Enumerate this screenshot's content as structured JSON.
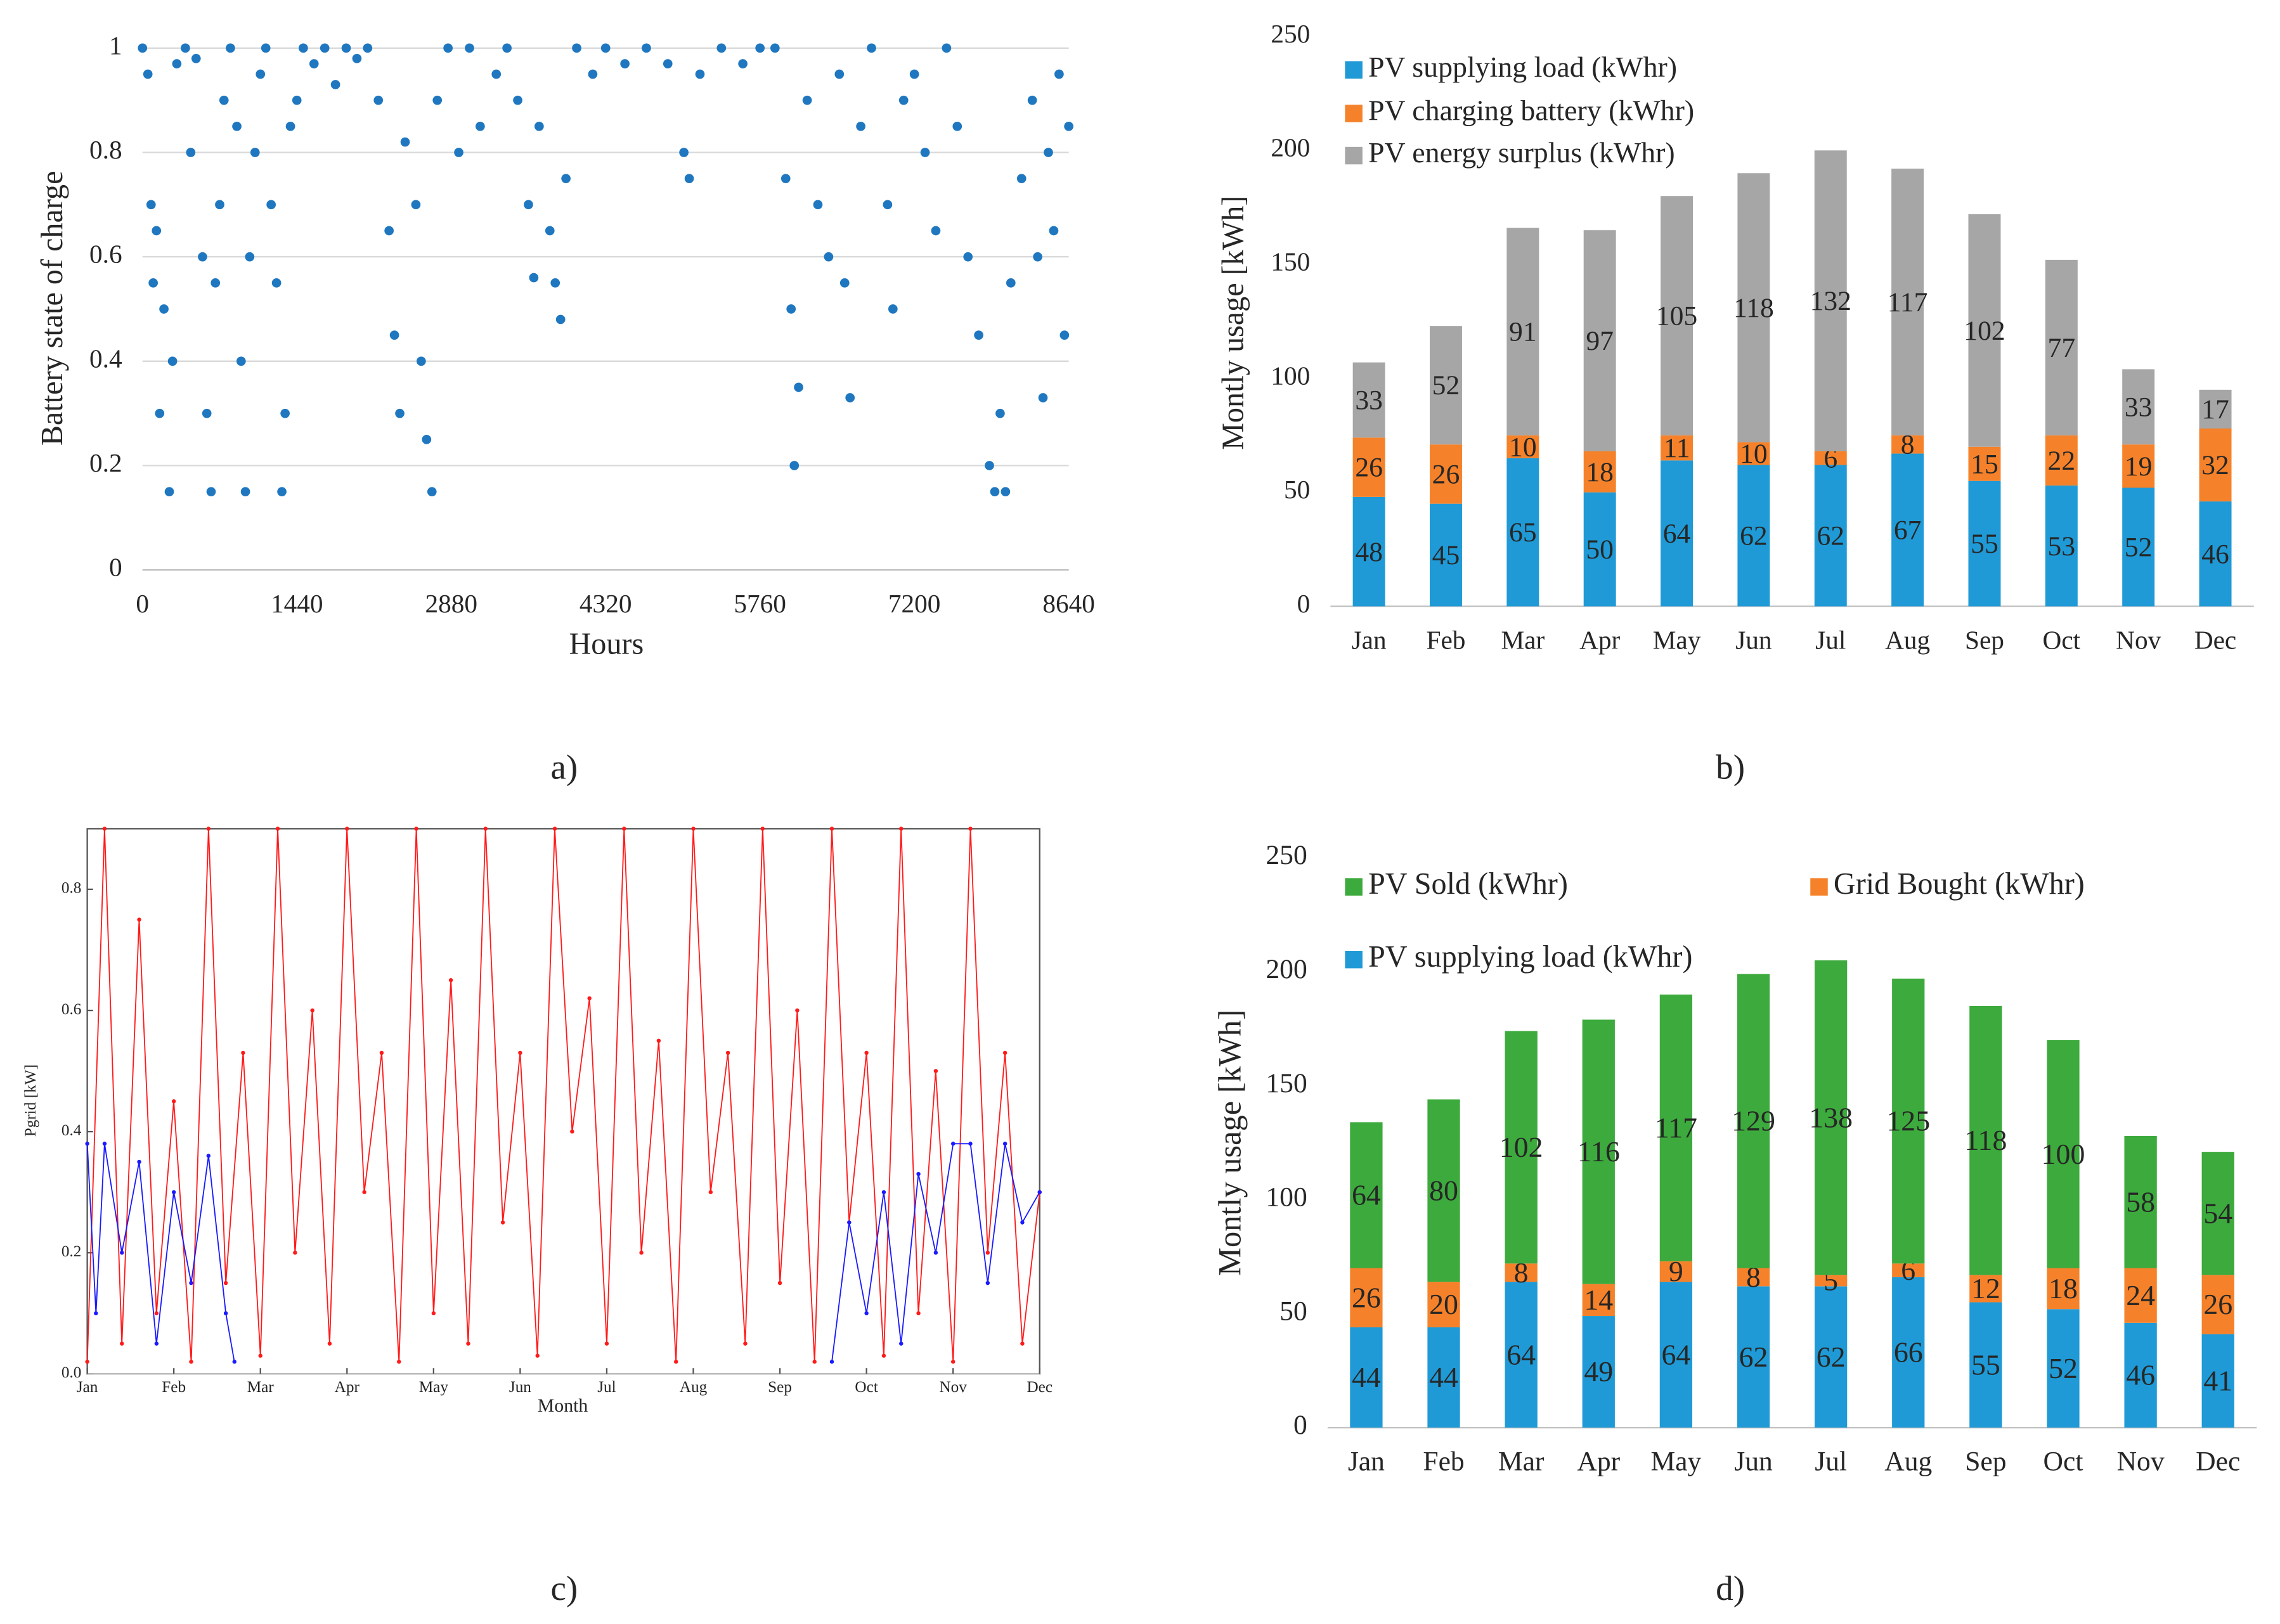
{
  "chart_data": [
    {
      "type": "scatter",
      "caption": "a)",
      "x_label": "Hours",
      "y_label": "Battery state of charge",
      "color": "#1f77c0",
      "grid": true,
      "xlim": [
        0,
        8640
      ],
      "xticks": [
        0,
        1440,
        2880,
        4320,
        5760,
        7200,
        8640
      ],
      "ylim": [
        0,
        1
      ],
      "yticks": [
        0,
        0.2,
        0.4,
        0.6,
        0.8,
        1
      ],
      "x": [
        0,
        50,
        80,
        100,
        130,
        160,
        200,
        250,
        280,
        320,
        400,
        450,
        500,
        560,
        600,
        640,
        680,
        720,
        760,
        820,
        880,
        920,
        960,
        1000,
        1050,
        1100,
        1150,
        1200,
        1250,
        1300,
        1330,
        1380,
        1440,
        1500,
        1600,
        1700,
        1800,
        1900,
        2000,
        2100,
        2200,
        2300,
        2350,
        2400,
        2450,
        2550,
        2600,
        2650,
        2700,
        2750,
        2850,
        2950,
        3050,
        3150,
        3300,
        3400,
        3500,
        3600,
        3650,
        3700,
        3800,
        3850,
        3900,
        3950,
        4050,
        4200,
        4320,
        4500,
        4700,
        4900,
        5050,
        5100,
        5200,
        5400,
        5600,
        5760,
        5900,
        6000,
        6050,
        6080,
        6120,
        6200,
        6300,
        6400,
        6500,
        6550,
        6600,
        6700,
        6800,
        6950,
        7000,
        7100,
        7200,
        7300,
        7400,
        7500,
        7600,
        7700,
        7800,
        7900,
        7950,
        8000,
        8050,
        8100,
        8200,
        8300,
        8350,
        8400,
        8450,
        8500,
        8550,
        8600,
        8640
      ],
      "values": [
        1,
        0.95,
        0.7,
        0.55,
        0.65,
        0.3,
        0.5,
        0.15,
        0.4,
        0.97,
        1,
        0.8,
        0.98,
        0.6,
        0.3,
        0.15,
        0.55,
        0.7,
        0.9,
        1,
        0.85,
        0.4,
        0.15,
        0.6,
        0.8,
        0.95,
        1,
        0.7,
        0.55,
        0.15,
        0.3,
        0.85,
        0.9,
        1,
        0.97,
        1,
        0.93,
        1,
        0.98,
        1,
        0.9,
        0.65,
        0.45,
        0.3,
        0.82,
        0.7,
        0.4,
        0.25,
        0.15,
        0.9,
        1,
        0.8,
        1,
        0.85,
        0.95,
        1,
        0.9,
        0.7,
        0.56,
        0.85,
        0.65,
        0.55,
        0.48,
        0.75,
        1,
        0.95,
        1,
        0.97,
        1,
        0.97,
        0.8,
        0.75,
        0.95,
        1,
        0.97,
        1,
        1,
        0.75,
        0.5,
        0.2,
        0.35,
        0.9,
        0.7,
        0.6,
        0.95,
        0.55,
        0.33,
        0.85,
        1,
        0.7,
        0.5,
        0.9,
        0.95,
        0.8,
        0.65,
        1,
        0.85,
        0.6,
        0.45,
        0.2,
        0.15,
        0.3,
        0.15,
        0.55,
        0.75,
        0.9,
        0.6,
        0.33,
        0.8,
        0.65,
        0.95,
        0.45,
        0.85
      ]
    },
    {
      "type": "bar",
      "stacked": true,
      "caption": "b)",
      "y_label": "Montly usage [kWh]",
      "grid": false,
      "categories": [
        "Jan",
        "Feb",
        "Mar",
        "Apr",
        "May",
        "Jun",
        "Jul",
        "Aug",
        "Sep",
        "Oct",
        "Nov",
        "Dec"
      ],
      "ylim": [
        0,
        250
      ],
      "yticks": [
        0,
        50,
        100,
        150,
        200,
        250
      ],
      "series": [
        {
          "name": "PV supplying load (kWhr)",
          "color": "#1f9ad6",
          "values": [
            48,
            45,
            65,
            50,
            64,
            62,
            62,
            67,
            55,
            53,
            52,
            46
          ]
        },
        {
          "name": "PV charging battery (kWhr)",
          "color": "#f5822a",
          "values": [
            26,
            26,
            10,
            18,
            11,
            10,
            6,
            8,
            15,
            22,
            19,
            32
          ]
        },
        {
          "name": "PV energy surplus (kWhr)",
          "color": "#a6a6a6",
          "values": [
            33,
            52,
            91,
            97,
            105,
            118,
            132,
            117,
            102,
            77,
            33,
            17
          ]
        }
      ]
    },
    {
      "type": "line",
      "caption": "c)",
      "x_label": "Month",
      "y_label": "Pgrid [kW]",
      "grid": false,
      "xlim": [
        0,
        11
      ],
      "xticks": [
        {
          "value": 0,
          "label": "Jan"
        },
        {
          "value": 1,
          "label": "Feb"
        },
        {
          "value": 2,
          "label": "Mar"
        },
        {
          "value": 3,
          "label": "Apr"
        },
        {
          "value": 4,
          "label": "May"
        },
        {
          "value": 5,
          "label": "Jun"
        },
        {
          "value": 6,
          "label": "Jul"
        },
        {
          "value": 7,
          "label": "Aug"
        },
        {
          "value": 8,
          "label": "Sep"
        },
        {
          "value": 9,
          "label": "Oct"
        },
        {
          "value": 10,
          "label": "Nov"
        },
        {
          "value": 11,
          "label": "Dec"
        }
      ],
      "ylim": [
        0,
        0.9
      ],
      "yticks": [
        {
          "value": 0,
          "label": "0.0"
        },
        0.2,
        0.4,
        0.6,
        0.8
      ],
      "series": [
        {
          "color": "#ff1a1a",
          "x": [
            0,
            0.2,
            0.4,
            0.6,
            0.8,
            1,
            1.2,
            1.4,
            1.6,
            1.8,
            2,
            2.2,
            2.4,
            2.6,
            2.8,
            3,
            3.2,
            3.4,
            3.6,
            3.8,
            4,
            4.2,
            4.4,
            4.6,
            4.8,
            5,
            5.2,
            5.4,
            5.6,
            5.8,
            6,
            6.2,
            6.4,
            6.6,
            6.8,
            7,
            7.2,
            7.4,
            7.6,
            7.8,
            8,
            8.2,
            8.4,
            8.6,
            8.8,
            9,
            9.2,
            9.4,
            9.6,
            9.8,
            10,
            10.2,
            10.4,
            10.6,
            10.8,
            11
          ],
          "values": [
            0.02,
            0.9,
            0.05,
            0.75,
            0.1,
            0.45,
            0.02,
            0.9,
            0.15,
            0.53,
            0.03,
            0.9,
            0.2,
            0.6,
            0.05,
            0.9,
            0.3,
            0.53,
            0.02,
            0.9,
            0.1,
            0.65,
            0.05,
            0.9,
            0.25,
            0.53,
            0.03,
            0.9,
            0.4,
            0.62,
            0.05,
            0.9,
            0.2,
            0.55,
            0.02,
            0.9,
            0.3,
            0.53,
            0.05,
            0.9,
            0.15,
            0.6,
            0.02,
            0.9,
            0.25,
            0.53,
            0.03,
            0.9,
            0.1,
            0.5,
            0.02,
            0.9,
            0.2,
            0.53,
            0.05,
            0.3
          ]
        },
        {
          "color": "#1a1aff",
          "x": [
            0,
            0.1,
            0.2,
            0.4,
            0.6,
            0.8,
            1.0,
            1.2,
            1.4,
            1.6,
            1.7,
            null,
            8.6,
            8.8,
            9,
            9.2,
            9.4,
            9.6,
            9.8,
            10,
            10.2,
            10.4,
            10.6,
            10.8,
            11
          ],
          "values": [
            0.38,
            0.1,
            0.38,
            0.2,
            0.35,
            0.05,
            0.3,
            0.15,
            0.36,
            0.1,
            0.02,
            null,
            0.02,
            0.25,
            0.1,
            0.3,
            0.05,
            0.33,
            0.2,
            0.38,
            0.38,
            0.15,
            0.38,
            0.25,
            0.3
          ]
        }
      ]
    },
    {
      "type": "bar",
      "stacked": true,
      "caption": "d)",
      "y_label": "Montly usage [kWh]",
      "grid": false,
      "categories": [
        "Jan",
        "Feb",
        "Mar",
        "Apr",
        "May",
        "Jun",
        "Jul",
        "Aug",
        "Sep",
        "Oct",
        "Nov",
        "Dec"
      ],
      "ylim": [
        0,
        250
      ],
      "yticks": [
        0,
        50,
        100,
        150,
        200,
        250
      ],
      "series": [
        {
          "name": "PV supplying load (kWhr)",
          "color": "#1f9ad6",
          "values": [
            44,
            44,
            64,
            49,
            64,
            62,
            62,
            66,
            55,
            52,
            46,
            41
          ]
        },
        {
          "name": "Grid Bought (kWhr)",
          "color": "#f5822a",
          "values": [
            26,
            20,
            8,
            14,
            9,
            8,
            5,
            6,
            12,
            18,
            24,
            26
          ]
        },
        {
          "name": "PV Sold (kWhr)",
          "color": "#3daa3d",
          "values": [
            64,
            80,
            102,
            116,
            117,
            129,
            138,
            125,
            118,
            100,
            58,
            54
          ]
        }
      ]
    }
  ]
}
